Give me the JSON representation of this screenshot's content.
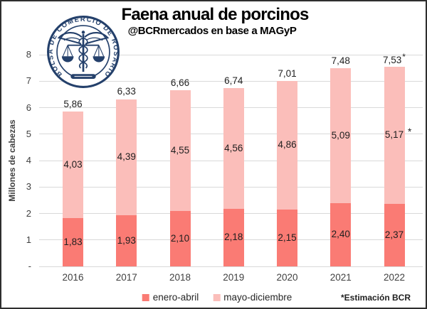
{
  "header": {
    "title": "Faena anual de porcinos",
    "subtitle": "@BCRmercados en base a MAGyP"
  },
  "logo": {
    "organization": "Bolsa de Comercio de Rosario",
    "ring_text": "BOLSA DE COMERCIO DE ROSARIO",
    "color": "#24406b"
  },
  "chart_data": {
    "type": "bar",
    "stacked": true,
    "title": "Faena anual de porcinos",
    "subtitle": "@BCRmercados en base a MAGyP",
    "ylabel": "Millones de cabezas",
    "xlabel": "",
    "ylim": [
      0,
      8
    ],
    "grid": "horizontal-only",
    "legend_position": "bottom",
    "categories": [
      "2016",
      "2017",
      "2018",
      "2019",
      "2020",
      "2021",
      "2022"
    ],
    "series": [
      {
        "name": "enero-abril",
        "color": "#fa7b74",
        "values": [
          1.83,
          1.93,
          2.1,
          2.18,
          2.15,
          2.4,
          2.37
        ],
        "labels": [
          "1,83",
          "1,93",
          "2,10",
          "2,18",
          "2,15",
          "2,40",
          "2,37"
        ]
      },
      {
        "name": "mayo-diciembre",
        "color": "#fbbeba",
        "values": [
          4.03,
          4.39,
          4.55,
          4.56,
          4.86,
          5.09,
          5.17
        ],
        "labels": [
          "4,03",
          "4,39",
          "4,55",
          "4,56",
          "4,86",
          "5,09",
          "5,17"
        ]
      }
    ],
    "totals": {
      "values": [
        5.86,
        6.33,
        6.66,
        6.74,
        7.01,
        7.48,
        7.53
      ],
      "labels": [
        "5,86",
        "6,33",
        "6,66",
        "6,74",
        "7,01",
        "7,48",
        "7,53"
      ]
    },
    "yticks": [
      {
        "value": 8,
        "label": "8"
      },
      {
        "value": 7,
        "label": "7"
      },
      {
        "value": 6,
        "label": "6"
      },
      {
        "value": 5,
        "label": "5"
      },
      {
        "value": 4,
        "label": "4"
      },
      {
        "value": 3,
        "label": "3"
      },
      {
        "value": 2,
        "label": "2"
      },
      {
        "value": 1,
        "label": "1"
      },
      {
        "value": 0,
        "label": "-"
      }
    ],
    "estimate": {
      "category": "2022",
      "category_index": 6,
      "marker": "*",
      "applies_to": [
        "total",
        "mayo-diciembre"
      ]
    },
    "footnote": "*Estimación BCR"
  },
  "colors": {
    "grid": "#d9d9d9",
    "axis_text": "#404040",
    "label_text": "#1f1f1f",
    "border": "#2e2e2e"
  }
}
